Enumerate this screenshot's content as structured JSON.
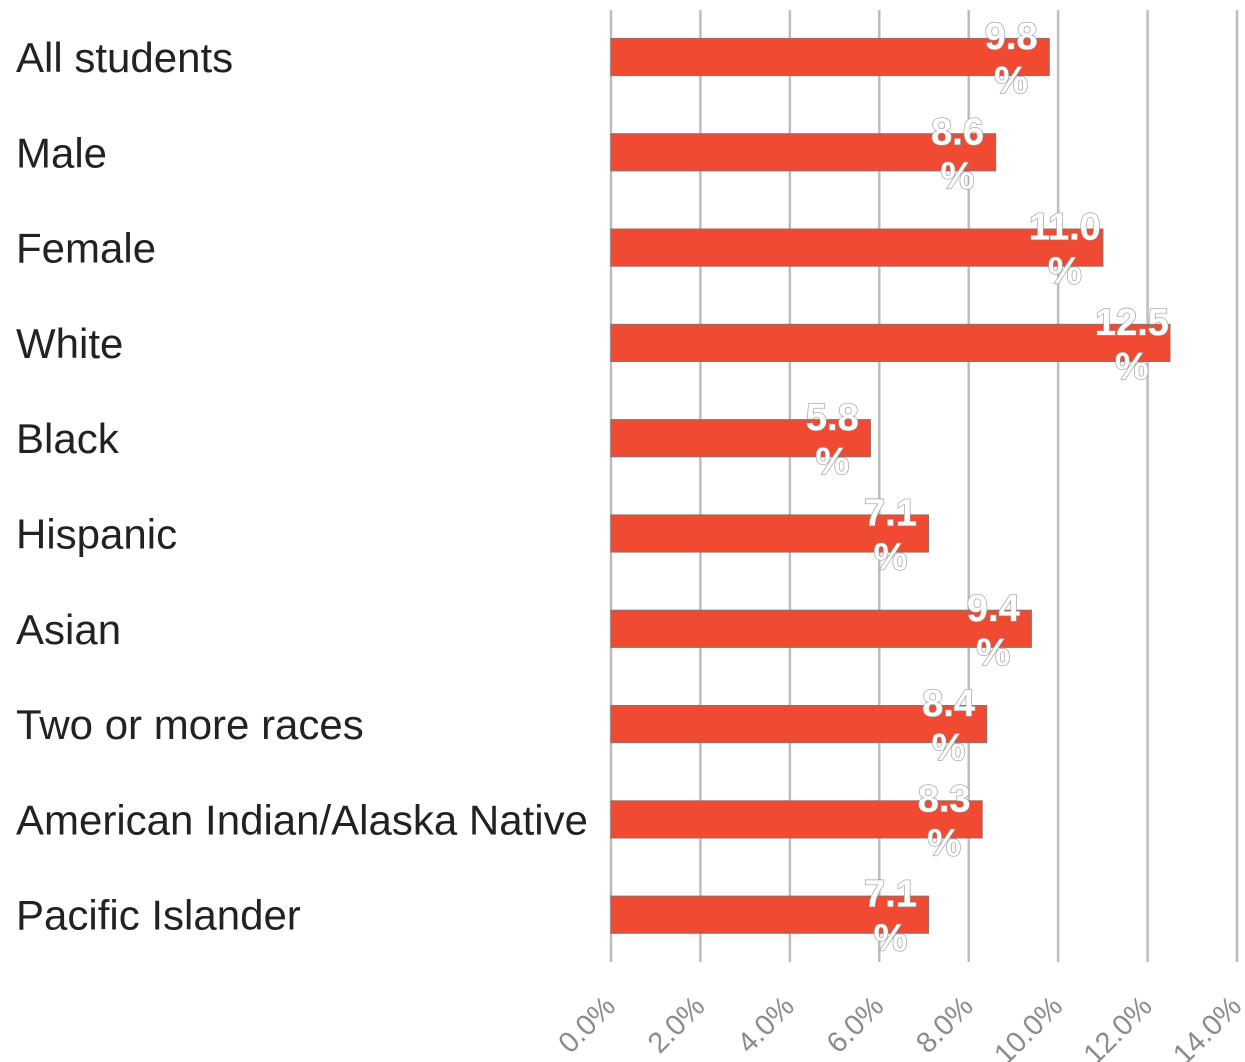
{
  "chart_data": {
    "type": "bar",
    "orientation": "horizontal",
    "categories": [
      "All students",
      "Male",
      "Female",
      "White",
      "Black",
      "Hispanic",
      "Asian",
      "Two or more races",
      "American Indian/Alaska Native",
      "Pacific Islander"
    ],
    "values": [
      9.8,
      8.6,
      11.0,
      12.5,
      5.8,
      7.1,
      9.4,
      8.4,
      8.3,
      7.1
    ],
    "data_labels": [
      "9.8 %",
      "8.6 %",
      "11.0 %",
      "12.5 %",
      "5.8 %",
      "7.1 %",
      "9.4 %",
      "8.4 %",
      "8.3 %",
      "7.1 %"
    ],
    "x_ticks": [
      "0.0%",
      "2.0%",
      "4.0%",
      "6.0%",
      "8.0%",
      "10.0%",
      "12.0%",
      "14.0%"
    ],
    "xlim": [
      0,
      14
    ],
    "grid": true,
    "legend": "none",
    "bar_color": "#f04a32",
    "title": "",
    "xlabel": "",
    "ylabel": ""
  }
}
